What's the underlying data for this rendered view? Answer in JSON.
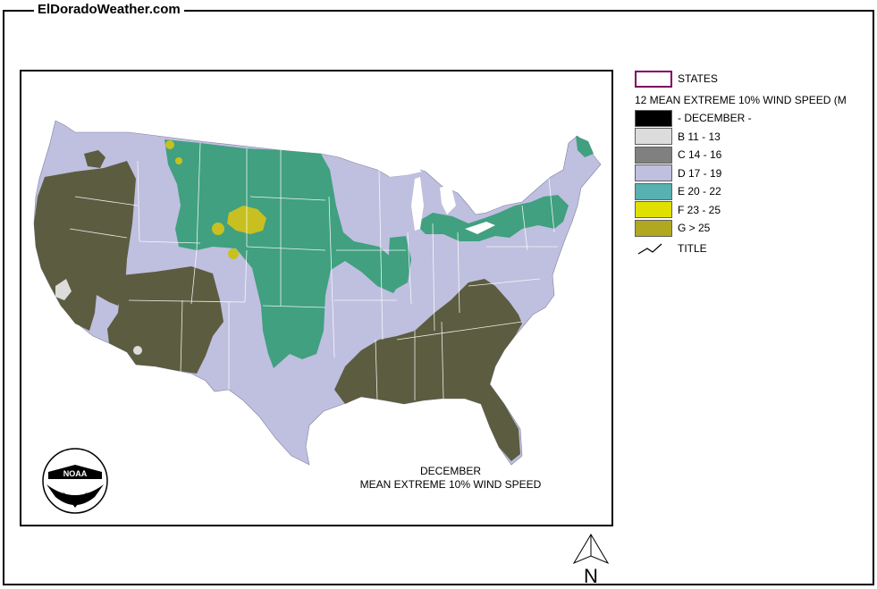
{
  "header": {
    "site_title": "ElDoradoWeather.com"
  },
  "map": {
    "caption_line1": "DECEMBER",
    "caption_line2": "MEAN EXTREME 10% WIND SPEED",
    "logo_text": "NOAA",
    "colors": {
      "ocean": "#ffffff",
      "zone_d": "#bfbfdf",
      "zone_e": "#40a080",
      "zone_f": "#c8c020",
      "zone_g": "#5c5c40",
      "zone_b": "#dcdcdc",
      "state_lines": "#ffffff"
    }
  },
  "legend": {
    "states_label": "STATES",
    "heading": "12 MEAN EXTREME 10% WIND SPEED (M",
    "items": [
      {
        "label": "- DECEMBER -",
        "color": "#000000"
      },
      {
        "label": "B 11 - 13",
        "color": "#dcdcdc"
      },
      {
        "label": "C 14 - 16",
        "color": "#808080"
      },
      {
        "label": "D 17 - 19",
        "color": "#bfbfdf"
      },
      {
        "label": "E 20 - 22",
        "color": "#58b0b0"
      },
      {
        "label": "F 23 - 25",
        "color": "#e0e000"
      },
      {
        "label": "G > 25",
        "color": "#b0a820"
      }
    ],
    "title_label": "TITLE",
    "states_border_color": "#800060"
  },
  "compass": {
    "label": "N"
  }
}
